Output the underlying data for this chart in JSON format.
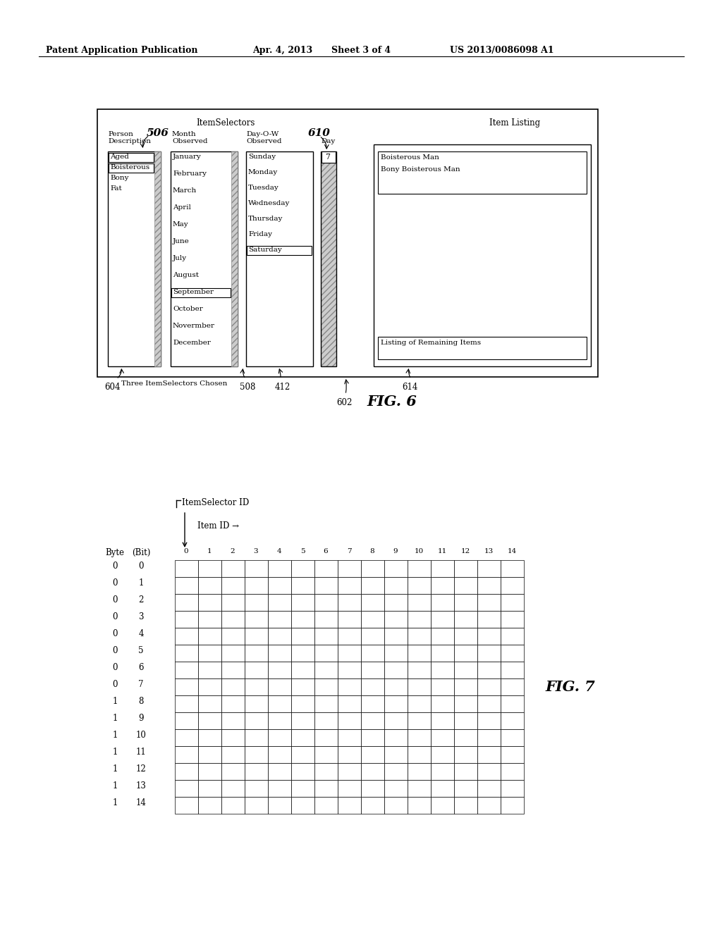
{
  "bg_color": "#ffffff",
  "header_text": "Patent Application Publication",
  "header_date": "Apr. 4, 2013",
  "header_sheet": "Sheet 3 of 4",
  "header_patent": "US 2013/0086098 A1",
  "fig6_title": "FIG. 6",
  "fig7_title": "FIG. 7",
  "fig6_label": "602",
  "fig6_itemselectors_label": "ItemSelectors",
  "fig6_itemlisting_label": "Item Listing",
  "col1_header1": "Person",
  "col1_header2": "Description",
  "col1_label": "506",
  "col1_items": [
    "Aged",
    "Boisterous",
    "Bony",
    "Fat"
  ],
  "col1_selected": "Boisterous",
  "col1_boxed": "Aged",
  "col2_header1": "Month",
  "col2_header2": "Observed",
  "col2_items": [
    "January",
    "February",
    "March",
    "April",
    "May",
    "June",
    "July",
    "August",
    "September",
    "October",
    "Novermber",
    "December"
  ],
  "col2_selected": "September",
  "col3_header1": "Day-O-W",
  "col3_header2": "Observed",
  "col3_items": [
    "Sunday",
    "Monday",
    "Tuesday",
    "Wednesday",
    "Thursday",
    "Friday",
    "Saturday"
  ],
  "col3_selected": "Saturday",
  "col4_header": "Day",
  "col4_label": "610",
  "col4_value": "7",
  "listing_items": [
    "Boisterous Man",
    "Bony Boisterous Man"
  ],
  "listing_remaining": "Listing of Remaining Items",
  "bottom_label1": "604",
  "bottom_text": "Three ItemSelectors Chosen",
  "bottom_label2": "508",
  "bottom_label3": "412",
  "bottom_label4": "614",
  "fig7_byte_label": "Byte",
  "fig7_bit_label": "(Bit)",
  "fig7_itemselector_id": "ItemSelector ID",
  "fig7_item_id": "Item ID →",
  "fig7_bytes": [
    0,
    0,
    0,
    0,
    0,
    0,
    0,
    0,
    1,
    1,
    1,
    1,
    1,
    1,
    1
  ],
  "fig7_bits": [
    0,
    1,
    2,
    3,
    4,
    5,
    6,
    7,
    8,
    9,
    10,
    11,
    12,
    13,
    14
  ],
  "fig7_rows": 15,
  "fig7_cols": 15
}
